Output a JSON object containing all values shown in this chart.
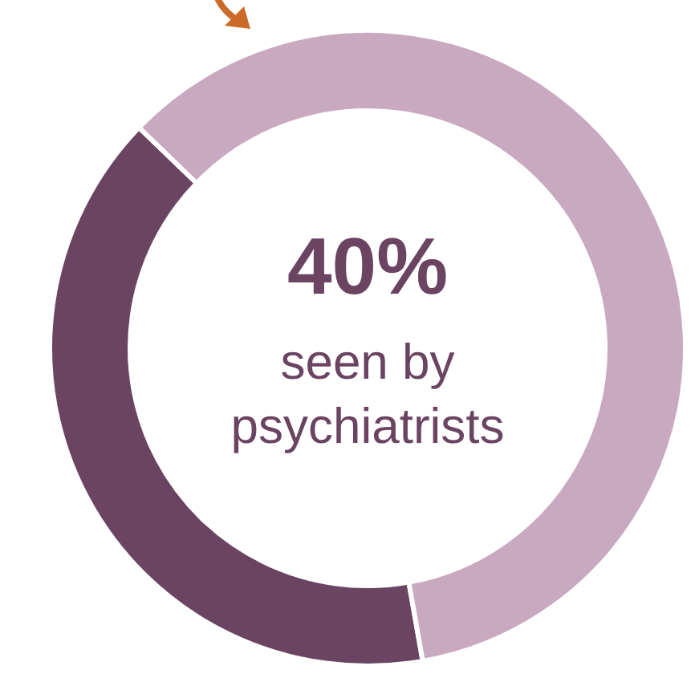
{
  "chart_data": {
    "type": "donut",
    "categories": [
      "seen by psychiatrists",
      null
    ],
    "values": [
      40,
      60
    ],
    "colors": [
      "#6b4462",
      "#c9a9c0"
    ],
    "value_labels": [
      "40%",
      null
    ]
  }
}
